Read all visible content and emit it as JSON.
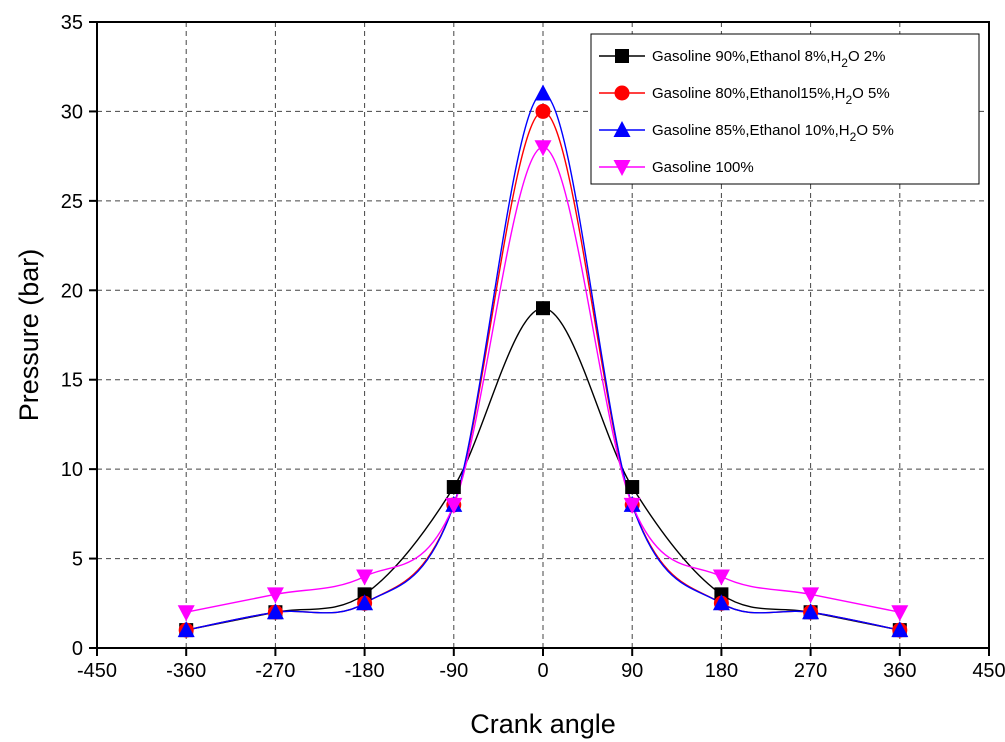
{
  "chart_data": {
    "type": "line",
    "xlabel": "Crank angle",
    "ylabel": "Pressure (bar)",
    "xlim": [
      -450,
      450
    ],
    "ylim": [
      0,
      35
    ],
    "xticks": [
      -450,
      -360,
      -270,
      -180,
      -90,
      0,
      90,
      180,
      270,
      360,
      450
    ],
    "yticks": [
      0,
      5,
      10,
      15,
      20,
      25,
      30,
      35
    ],
    "grid": true,
    "legend_position": "top-right",
    "x": [
      -360,
      -270,
      -180,
      -90,
      0,
      90,
      180,
      270,
      360
    ],
    "series": [
      {
        "name": "Gasoline 90%,Ethanol 8%,H2O 2%",
        "legend": {
          "main": "Gasoline 90%,Ethanol 8%,H",
          "sub": "2",
          "tail": "O 2%"
        },
        "color": "#000000",
        "marker": "square",
        "values": [
          1,
          2,
          3,
          9,
          19,
          9,
          3,
          2,
          1
        ]
      },
      {
        "name": "Gasoline 80%,Ethanol15%,H2O 5%",
        "legend": {
          "main": "Gasoline 80%,Ethanol15%,H",
          "sub": "2",
          "tail": "O 5%"
        },
        "color": "#ff0000",
        "marker": "circle",
        "values": [
          1,
          2,
          2.5,
          8,
          30,
          8,
          2.5,
          2,
          1
        ]
      },
      {
        "name": "Gasoline 85%,Ethanol 10%,H2O 5%",
        "legend": {
          "main": "Gasoline 85%,Ethanol 10%,H",
          "sub": "2",
          "tail": "O 5%"
        },
        "color": "#0000ff",
        "marker": "triangle-up",
        "values": [
          1,
          2,
          2.5,
          8,
          31,
          8,
          2.5,
          2,
          1
        ]
      },
      {
        "name": "Gasoline 100%",
        "legend": {
          "main": "Gasoline 100%",
          "sub": "",
          "tail": ""
        },
        "color": "#ff00ff",
        "marker": "triangle-down",
        "values": [
          2,
          3,
          4,
          8,
          28,
          8,
          4,
          3,
          2
        ]
      }
    ]
  }
}
